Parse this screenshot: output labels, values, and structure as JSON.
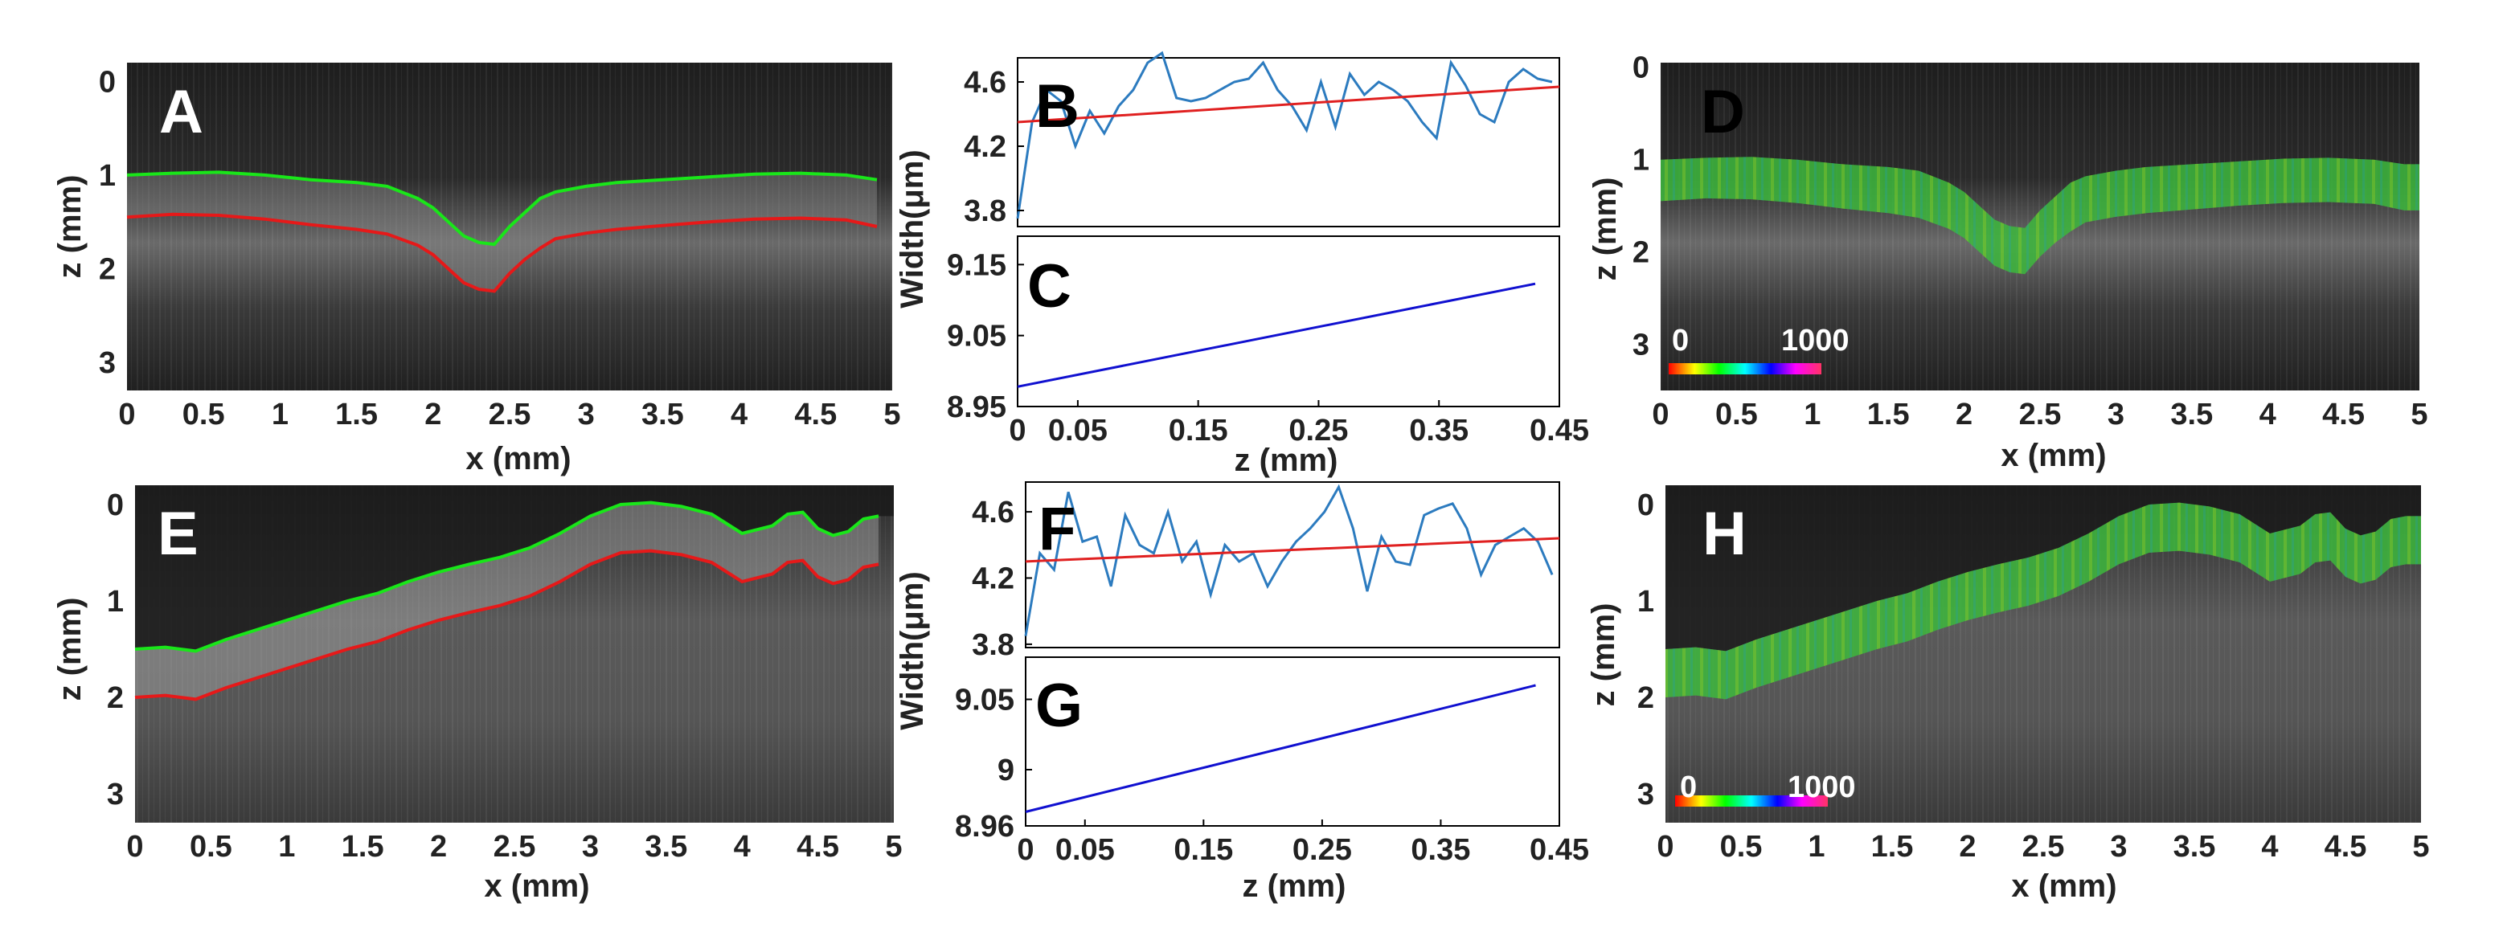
{
  "panels": {
    "A": {
      "letter": "A",
      "xlabel": "x (mm)",
      "ylabel": "z (mm)",
      "xticks": [
        "0",
        "0.5",
        "1",
        "1.5",
        "2",
        "2.5",
        "3",
        "3.5",
        "4",
        "4.5",
        "5"
      ],
      "yticks": [
        "0",
        "1",
        "2",
        "3"
      ]
    },
    "B": {
      "letter": "B",
      "yticks": [
        "4.6",
        "4.2",
        "3.8"
      ]
    },
    "C": {
      "letter": "C",
      "xlabel": "z (mm)",
      "xticks": [
        "0",
        "0.05",
        "0.15",
        "0.25",
        "0.35",
        "0.45"
      ],
      "yticks": [
        "9.15",
        "9.05",
        "8.95"
      ]
    },
    "BC": {
      "ylabel": "Width(μm)"
    },
    "D": {
      "letter": "D",
      "xlabel": "x (mm)",
      "ylabel": "z (mm)",
      "xticks": [
        "0",
        "0.5",
        "1",
        "1.5",
        "2",
        "2.5",
        "3",
        "3.5",
        "4",
        "4.5",
        "5"
      ],
      "yticks": [
        "0",
        "1",
        "2",
        "3"
      ],
      "cbar_min": "0",
      "cbar_max": "1000"
    },
    "E": {
      "letter": "E",
      "xlabel": "x (mm)",
      "ylabel": "z (mm)",
      "xticks": [
        "0",
        "0.5",
        "1",
        "1.5",
        "2",
        "2.5",
        "3",
        "3.5",
        "4",
        "4.5",
        "5"
      ],
      "yticks": [
        "0",
        "1",
        "2",
        "3"
      ]
    },
    "F": {
      "letter": "F",
      "yticks": [
        "4.6",
        "4.2",
        "3.8"
      ]
    },
    "G": {
      "letter": "G",
      "xlabel": "z (mm)",
      "xticks": [
        "0",
        "0.05",
        "0.15",
        "0.25",
        "0.35",
        "0.45"
      ],
      "yticks": [
        "9.05",
        "9",
        "8.96"
      ]
    },
    "FG": {
      "ylabel": "Width(μm)"
    },
    "H": {
      "letter": "H",
      "xlabel": "x (mm)",
      "ylabel": "z (mm)",
      "xticks": [
        "0",
        "0.5",
        "1",
        "1.5",
        "2",
        "2.5",
        "3",
        "3.5",
        "4",
        "4.5",
        "5"
      ],
      "yticks": [
        "0",
        "1",
        "2",
        "3"
      ],
      "cbar_min": "0",
      "cbar_max": "1000"
    }
  },
  "colors": {
    "green_boundary": "#19e619",
    "red_boundary": "#e61919",
    "blue_series": "#2c7bbf",
    "red_fit": "#e02020",
    "blue_fit": "#1010d0"
  },
  "chart_data": [
    {
      "panel": "A",
      "type": "line",
      "title": "",
      "xlabel": "x (mm)",
      "ylabel": "z (mm)",
      "xlim": [
        0,
        5
      ],
      "ylim": [
        3.3,
        -0.2
      ],
      "series": [
        {
          "name": "upper boundary",
          "color": "#19e619",
          "x": [
            0,
            0.3,
            0.6,
            0.9,
            1.2,
            1.5,
            1.7,
            1.9,
            2.0,
            2.1,
            2.2,
            2.3,
            2.4,
            2.5,
            2.6,
            2.7,
            2.8,
            3.0,
            3.2,
            3.5,
            3.8,
            4.1,
            4.4,
            4.7,
            4.9
          ],
          "y": [
            1.0,
            0.98,
            0.97,
            1.0,
            1.05,
            1.08,
            1.12,
            1.25,
            1.35,
            1.5,
            1.65,
            1.72,
            1.74,
            1.55,
            1.4,
            1.25,
            1.18,
            1.12,
            1.08,
            1.05,
            1.02,
            0.99,
            0.98,
            1.0,
            1.05
          ]
        },
        {
          "name": "lower boundary",
          "color": "#e61919",
          "x": [
            0,
            0.3,
            0.6,
            0.9,
            1.2,
            1.5,
            1.7,
            1.9,
            2.0,
            2.1,
            2.2,
            2.3,
            2.4,
            2.5,
            2.6,
            2.7,
            2.8,
            3.0,
            3.2,
            3.5,
            3.8,
            4.1,
            4.4,
            4.7,
            4.9
          ],
          "y": [
            1.45,
            1.42,
            1.43,
            1.47,
            1.53,
            1.58,
            1.63,
            1.75,
            1.85,
            2.0,
            2.15,
            2.22,
            2.24,
            2.05,
            1.9,
            1.78,
            1.68,
            1.62,
            1.58,
            1.54,
            1.5,
            1.47,
            1.46,
            1.48,
            1.55
          ]
        }
      ]
    },
    {
      "panel": "B",
      "type": "line",
      "title": "",
      "xlim": [
        0,
        0.45
      ],
      "ylim": [
        3.7,
        4.75
      ],
      "series": [
        {
          "name": "width",
          "color": "#2c7bbf",
          "x": [
            0,
            0.012,
            0.024,
            0.036,
            0.048,
            0.06,
            0.072,
            0.084,
            0.096,
            0.108,
            0.12,
            0.132,
            0.144,
            0.156,
            0.168,
            0.18,
            0.192,
            0.204,
            0.216,
            0.228,
            0.24,
            0.252,
            0.264,
            0.276,
            0.288,
            0.3,
            0.312,
            0.324,
            0.336,
            0.348,
            0.36,
            0.372,
            0.384,
            0.396,
            0.408,
            0.42,
            0.432,
            0.444
          ],
          "y": [
            3.75,
            4.35,
            4.55,
            4.48,
            4.2,
            4.42,
            4.28,
            4.45,
            4.55,
            4.72,
            4.78,
            4.5,
            4.48,
            4.5,
            4.55,
            4.6,
            4.62,
            4.72,
            4.55,
            4.45,
            4.3,
            4.6,
            4.32,
            4.65,
            4.52,
            4.6,
            4.55,
            4.48,
            4.35,
            4.25,
            4.72,
            4.58,
            4.4,
            4.35,
            4.6,
            4.68,
            4.62,
            4.6
          ]
        },
        {
          "name": "fit",
          "color": "#e02020",
          "x": [
            0,
            0.45
          ],
          "y": [
            4.35,
            4.57
          ]
        }
      ]
    },
    {
      "panel": "C",
      "type": "line",
      "title": "",
      "xlabel": "z (mm)",
      "ylabel": "Width(μm)",
      "xlim": [
        0,
        0.45
      ],
      "ylim": [
        8.95,
        9.19
      ],
      "series": [
        {
          "name": "fit",
          "color": "#1010d0",
          "x": [
            0,
            0.43
          ],
          "y": [
            8.978,
            9.123
          ]
        }
      ]
    },
    {
      "panel": "D",
      "type": "heatmap",
      "title": "",
      "xlabel": "x (mm)",
      "ylabel": "z (mm)",
      "xlim": [
        0,
        5
      ],
      "ylim": [
        3.5,
        -0.05
      ],
      "colorbar": [
        0,
        1000
      ]
    },
    {
      "panel": "E",
      "type": "line",
      "title": "",
      "xlabel": "x (mm)",
      "ylabel": "z (mm)",
      "xlim": [
        0,
        5
      ],
      "ylim": [
        3.3,
        -0.2
      ],
      "series": [
        {
          "name": "upper boundary",
          "color": "#19e619",
          "x": [
            0,
            0.2,
            0.4,
            0.6,
            0.8,
            1.0,
            1.2,
            1.4,
            1.6,
            1.8,
            2.0,
            2.2,
            2.4,
            2.6,
            2.8,
            3.0,
            3.2,
            3.4,
            3.6,
            3.8,
            3.9,
            4.0,
            4.2,
            4.3,
            4.4,
            4.5,
            4.6,
            4.7,
            4.8,
            4.9
          ],
          "y": [
            1.5,
            1.48,
            1.52,
            1.4,
            1.3,
            1.2,
            1.1,
            1.0,
            0.92,
            0.8,
            0.7,
            0.62,
            0.55,
            0.45,
            0.3,
            0.12,
            0.0,
            -0.02,
            0.02,
            0.1,
            0.2,
            0.3,
            0.22,
            0.1,
            0.08,
            0.25,
            0.32,
            0.28,
            0.15,
            0.12
          ]
        },
        {
          "name": "lower boundary",
          "color": "#e61919",
          "x": [
            0,
            0.2,
            0.4,
            0.6,
            0.8,
            1.0,
            1.2,
            1.4,
            1.6,
            1.8,
            2.0,
            2.2,
            2.4,
            2.6,
            2.8,
            3.0,
            3.2,
            3.4,
            3.6,
            3.8,
            3.9,
            4.0,
            4.2,
            4.3,
            4.4,
            4.5,
            4.6,
            4.7,
            4.8,
            4.9
          ],
          "y": [
            2.0,
            1.98,
            2.02,
            1.9,
            1.8,
            1.7,
            1.6,
            1.5,
            1.42,
            1.3,
            1.2,
            1.12,
            1.05,
            0.95,
            0.8,
            0.62,
            0.5,
            0.48,
            0.52,
            0.6,
            0.7,
            0.8,
            0.72,
            0.6,
            0.58,
            0.75,
            0.82,
            0.78,
            0.65,
            0.62
          ]
        }
      ]
    },
    {
      "panel": "F",
      "type": "line",
      "title": "",
      "xlim": [
        0,
        0.45
      ],
      "ylim": [
        3.78,
        4.78
      ],
      "series": [
        {
          "name": "width",
          "color": "#2c7bbf",
          "x": [
            0,
            0.012,
            0.024,
            0.036,
            0.048,
            0.06,
            0.072,
            0.084,
            0.096,
            0.108,
            0.12,
            0.132,
            0.144,
            0.156,
            0.168,
            0.18,
            0.192,
            0.204,
            0.216,
            0.228,
            0.24,
            0.252,
            0.264,
            0.276,
            0.288,
            0.3,
            0.312,
            0.324,
            0.336,
            0.348,
            0.36,
            0.372,
            0.384,
            0.396,
            0.408,
            0.42,
            0.432,
            0.444
          ],
          "y": [
            3.85,
            4.35,
            4.25,
            4.72,
            4.42,
            4.45,
            4.15,
            4.58,
            4.4,
            4.35,
            4.6,
            4.3,
            4.42,
            4.1,
            4.4,
            4.3,
            4.35,
            4.15,
            4.3,
            4.42,
            4.5,
            4.6,
            4.75,
            4.5,
            4.12,
            4.45,
            4.3,
            4.28,
            4.58,
            4.62,
            4.65,
            4.5,
            4.22,
            4.4,
            4.45,
            4.5,
            4.42,
            4.22
          ]
        },
        {
          "name": "fit",
          "color": "#e02020",
          "x": [
            0,
            0.45
          ],
          "y": [
            4.3,
            4.44
          ]
        }
      ]
    },
    {
      "panel": "G",
      "type": "line",
      "title": "",
      "xlabel": "z (mm)",
      "ylabel": "Width(μm)",
      "xlim": [
        0,
        0.45
      ],
      "ylim": [
        8.96,
        9.08
      ],
      "series": [
        {
          "name": "fit",
          "color": "#1010d0",
          "x": [
            0,
            0.43
          ],
          "y": [
            8.97,
            9.06
          ]
        }
      ]
    },
    {
      "panel": "H",
      "type": "heatmap",
      "title": "",
      "xlabel": "x (mm)",
      "ylabel": "z (mm)",
      "xlim": [
        0,
        5
      ],
      "ylim": [
        3.3,
        -0.2
      ],
      "colorbar": [
        0,
        1000
      ]
    }
  ]
}
